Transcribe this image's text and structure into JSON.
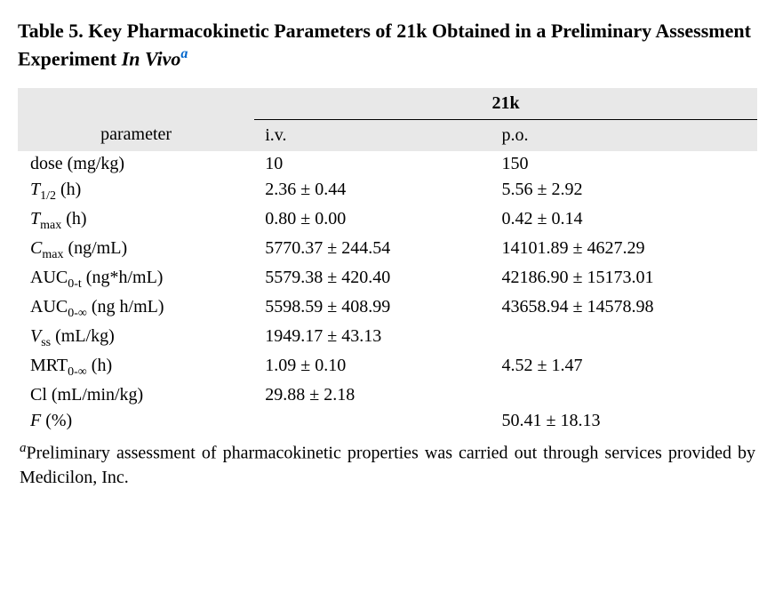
{
  "title": {
    "prefix": "Table 5. Key Pharmacokinetic Parameters of 21k Obtained in a Preliminary Assessment Experiment ",
    "italic": "In Vivo",
    "superscript": "a"
  },
  "table": {
    "compound_header": "21k",
    "columns": {
      "param": "parameter",
      "iv": "i.v.",
      "po": "p.o."
    },
    "rows": [
      {
        "param_plain": "dose (mg/kg)",
        "iv": "10",
        "po": "150"
      },
      {
        "param_html": "T1/2",
        "param_sub": "1/2",
        "param_prefix": "T",
        "param_suffix": " (h)",
        "iv": "2.36 ± 0.44",
        "po": "5.56 ± 2.92"
      },
      {
        "param_prefix": "T",
        "param_sub": "max",
        "param_suffix": " (h)",
        "iv": "0.80 ± 0.00",
        "po": "0.42 ± 0.14"
      },
      {
        "param_prefix": "C",
        "param_sub": "max",
        "param_suffix": " (ng/mL)",
        "iv": "5770.37 ± 244.54",
        "po": "14101.89 ± 4627.29"
      },
      {
        "param_prefix": "AUC",
        "param_sub": "0-t",
        "param_suffix": " (ng*h/mL)",
        "iv": "5579.38 ± 420.40",
        "po": "42186.90 ± 15173.01"
      },
      {
        "param_prefix": "AUC",
        "param_sub": "0-∞",
        "param_suffix": " (ng h/mL)",
        "iv": "5598.59 ± 408.99",
        "po": "43658.94 ± 14578.98"
      },
      {
        "param_prefix": "V",
        "param_sub": "ss",
        "param_suffix": " (mL/kg)",
        "iv": "1949.17 ± 43.13",
        "po": ""
      },
      {
        "param_prefix": "MRT",
        "param_sub": "0-∞",
        "param_suffix": " (h)",
        "iv": "1.09 ± 0.10",
        "po": "4.52 ± 1.47"
      },
      {
        "param_plain": "Cl (mL/min/kg)",
        "iv": "29.88 ± 2.18",
        "po": ""
      },
      {
        "param_prefix": "F",
        "param_sub": "",
        "param_suffix": " (%)",
        "param_italic_prefix": true,
        "iv": "",
        "po": "50.41 ± 18.13"
      }
    ]
  },
  "footnote": {
    "marker": "a",
    "text": "Preliminary assessment of pharmacokinetic properties was carried out through services provided by Medicilon, Inc."
  },
  "styles": {
    "header_bg": "#e8e8e8",
    "text_color": "#000000",
    "link_color": "#0066cc",
    "font_size_body": 20,
    "font_size_title": 22
  }
}
